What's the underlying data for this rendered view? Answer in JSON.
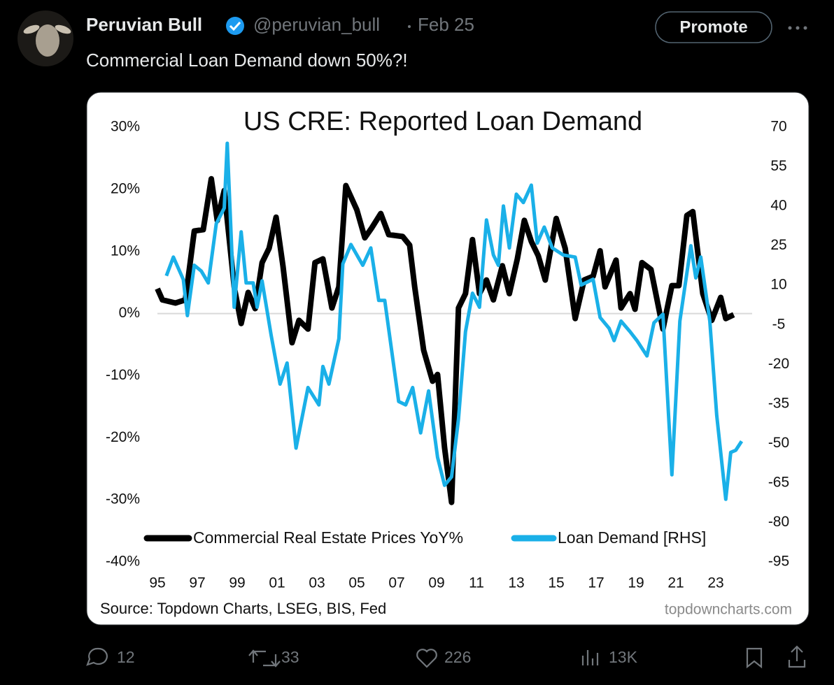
{
  "tweet": {
    "name": "Peruvian Bull",
    "handle": "@peruvian_bull",
    "date": "Feb 25",
    "button": "Promote",
    "text": "Commercial Loan Demand down 50%?!",
    "stats": {
      "replies": "12",
      "reposts": "33",
      "likes": "226",
      "views": "13K"
    }
  },
  "chart_data": {
    "type": "line",
    "title": "US CRE: Reported Loan Demand",
    "source": "Source: Topdown Charts, LSEG, BIS, Fed",
    "watermark": "topdowncharts.com",
    "legend": "bottom",
    "xlim": [
      1995,
      2025
    ],
    "xticks": [
      {
        "value": 1995,
        "label": "95"
      },
      {
        "value": 1997,
        "label": "97"
      },
      {
        "value": 1999,
        "label": "99"
      },
      {
        "value": 2001,
        "label": "01"
      },
      {
        "value": 2003,
        "label": "03"
      },
      {
        "value": 2005,
        "label": "05"
      },
      {
        "value": 2007,
        "label": "07"
      },
      {
        "value": 2009,
        "label": "09"
      },
      {
        "value": 2011,
        "label": "11"
      },
      {
        "value": 2013,
        "label": "13"
      },
      {
        "value": 2015,
        "label": "15"
      },
      {
        "value": 2017,
        "label": "17"
      },
      {
        "value": 2019,
        "label": "19"
      },
      {
        "value": 2021,
        "label": "21"
      },
      {
        "value": 2023,
        "label": "23"
      }
    ],
    "ylim": [
      -40,
      30
    ],
    "yticks": [
      {
        "value": 30,
        "label": "30%"
      },
      {
        "value": 20,
        "label": "20%"
      },
      {
        "value": 10,
        "label": "10%"
      },
      {
        "value": 0,
        "label": "0%"
      },
      {
        "value": -10,
        "label": "-10%"
      },
      {
        "value": -20,
        "label": "-20%"
      },
      {
        "value": -30,
        "label": "-30%"
      },
      {
        "value": -40,
        "label": "-40%"
      }
    ],
    "y2lim": [
      -95,
      70
    ],
    "y2ticks": [
      70,
      55,
      40,
      25,
      10,
      -5,
      -20,
      -35,
      -50,
      -65,
      -80,
      -95
    ],
    "series": [
      {
        "name": "Commercial Real Estate Prices YoY%",
        "color": "#000000",
        "x": [
          1995.0,
          1995.25,
          1995.9,
          1996.4,
          1996.85,
          1997.3,
          1997.7,
          1998.0,
          1998.35,
          1998.85,
          1999.2,
          1999.55,
          1999.9,
          2000.25,
          2000.6,
          2000.95,
          2001.3,
          2001.75,
          2002.1,
          2002.55,
          2002.9,
          2003.3,
          2003.75,
          2004.1,
          2004.45,
          2005.0,
          2005.4,
          2005.75,
          2006.2,
          2006.6,
          2007.3,
          2007.65,
          2007.9,
          2008.35,
          2008.8,
          2009.05,
          2009.4,
          2009.75,
          2010.1,
          2010.45,
          2010.8,
          2011.15,
          2011.5,
          2011.85,
          2012.3,
          2012.65,
          2013.05,
          2013.4,
          2013.75,
          2014.1,
          2014.45,
          2015.0,
          2015.45,
          2015.95,
          2016.4,
          2016.85,
          2017.2,
          2017.45,
          2018.0,
          2018.25,
          2018.7,
          2018.95,
          2019.3,
          2019.75,
          2020.35,
          2020.8,
          2021.15,
          2021.55,
          2021.85,
          2022.35,
          2022.8,
          2023.25,
          2023.5,
          2023.9
        ],
        "values": [
          4.0,
          2.2,
          1.7,
          2.2,
          13.3,
          13.5,
          21.7,
          15.0,
          19.8,
          4.3,
          -1.6,
          3.4,
          0.8,
          8.2,
          10.5,
          15.5,
          7.6,
          -4.7,
          -1.1,
          -2.5,
          8.2,
          8.8,
          0.9,
          4.3,
          20.6,
          16.7,
          12.2,
          13.8,
          16.1,
          12.7,
          12.4,
          11.0,
          4.3,
          -5.9,
          -10.9,
          -9.8,
          -21.6,
          -30.4,
          0.9,
          3.2,
          11.9,
          3.2,
          5.4,
          2.2,
          7.7,
          3.2,
          8.8,
          15.0,
          11.6,
          9.3,
          5.4,
          15.3,
          10.5,
          -0.8,
          5.4,
          6.0,
          10.1,
          4.3,
          8.6,
          0.9,
          3.2,
          0.7,
          8.2,
          7.1,
          -2.5,
          4.5,
          4.5,
          15.8,
          16.4,
          3.2,
          -1.1,
          2.6,
          -0.8,
          -0.2
        ]
      },
      {
        "name": "Loan Demand [RHS]",
        "color": "#1ab0e8",
        "axis": "y2",
        "x": [
          1995.45,
          1995.8,
          1996.3,
          1996.5,
          1996.85,
          1997.2,
          1997.55,
          1997.95,
          1998.35,
          1998.5,
          1998.85,
          1999.2,
          1999.45,
          1999.8,
          2000.0,
          2000.25,
          2000.7,
          2001.15,
          2001.5,
          2001.95,
          2002.55,
          2003.1,
          2003.3,
          2003.6,
          2004.1,
          2004.3,
          2004.7,
          2005.3,
          2005.7,
          2006.1,
          2006.4,
          2007.1,
          2007.45,
          2007.8,
          2008.2,
          2008.6,
          2009.05,
          2009.4,
          2009.75,
          2010.1,
          2010.45,
          2010.8,
          2011.15,
          2011.5,
          2011.85,
          2012.1,
          2012.35,
          2012.65,
          2013.0,
          2013.35,
          2013.75,
          2014.05,
          2014.4,
          2014.8,
          2015.35,
          2015.95,
          2016.25,
          2016.85,
          2017.2,
          2017.65,
          2017.9,
          2018.25,
          2018.7,
          2019.05,
          2019.55,
          2019.9,
          2020.35,
          2020.8,
          2021.2,
          2021.75,
          2022.0,
          2022.25,
          2022.7,
          2023.05,
          2023.5,
          2023.75,
          2024.0,
          2024.3
        ],
        "values": [
          13.6,
          20.7,
          12.2,
          -1.5,
          17.6,
          15.4,
          10.9,
          33.4,
          39.3,
          63.9,
          1.7,
          30.3,
          10.9,
          10.9,
          1.7,
          11.7,
          -8.9,
          -27.5,
          -19.5,
          -51.8,
          -28.8,
          -35.4,
          -20.8,
          -27.5,
          -10.3,
          18.1,
          25.5,
          17.6,
          24.2,
          4.3,
          4.3,
          -34.1,
          -35.4,
          -28.8,
          -46.0,
          -30.1,
          -55.3,
          -65.9,
          -62.7,
          -40.7,
          -7.6,
          7.0,
          1.7,
          34.8,
          21.5,
          17.6,
          40.1,
          24.2,
          44.6,
          41.4,
          48.0,
          26.0,
          32.1,
          24.2,
          21.5,
          20.7,
          10.1,
          12.3,
          -2.2,
          -6.3,
          -11.0,
          -3.6,
          -7.6,
          -11.0,
          -16.8,
          -4.2,
          -1.0,
          -61.9,
          -3.6,
          25.0,
          12.8,
          20.7,
          -3.6,
          -39.4,
          -71.2,
          -53.4,
          -52.6,
          -49.2
        ]
      }
    ]
  }
}
